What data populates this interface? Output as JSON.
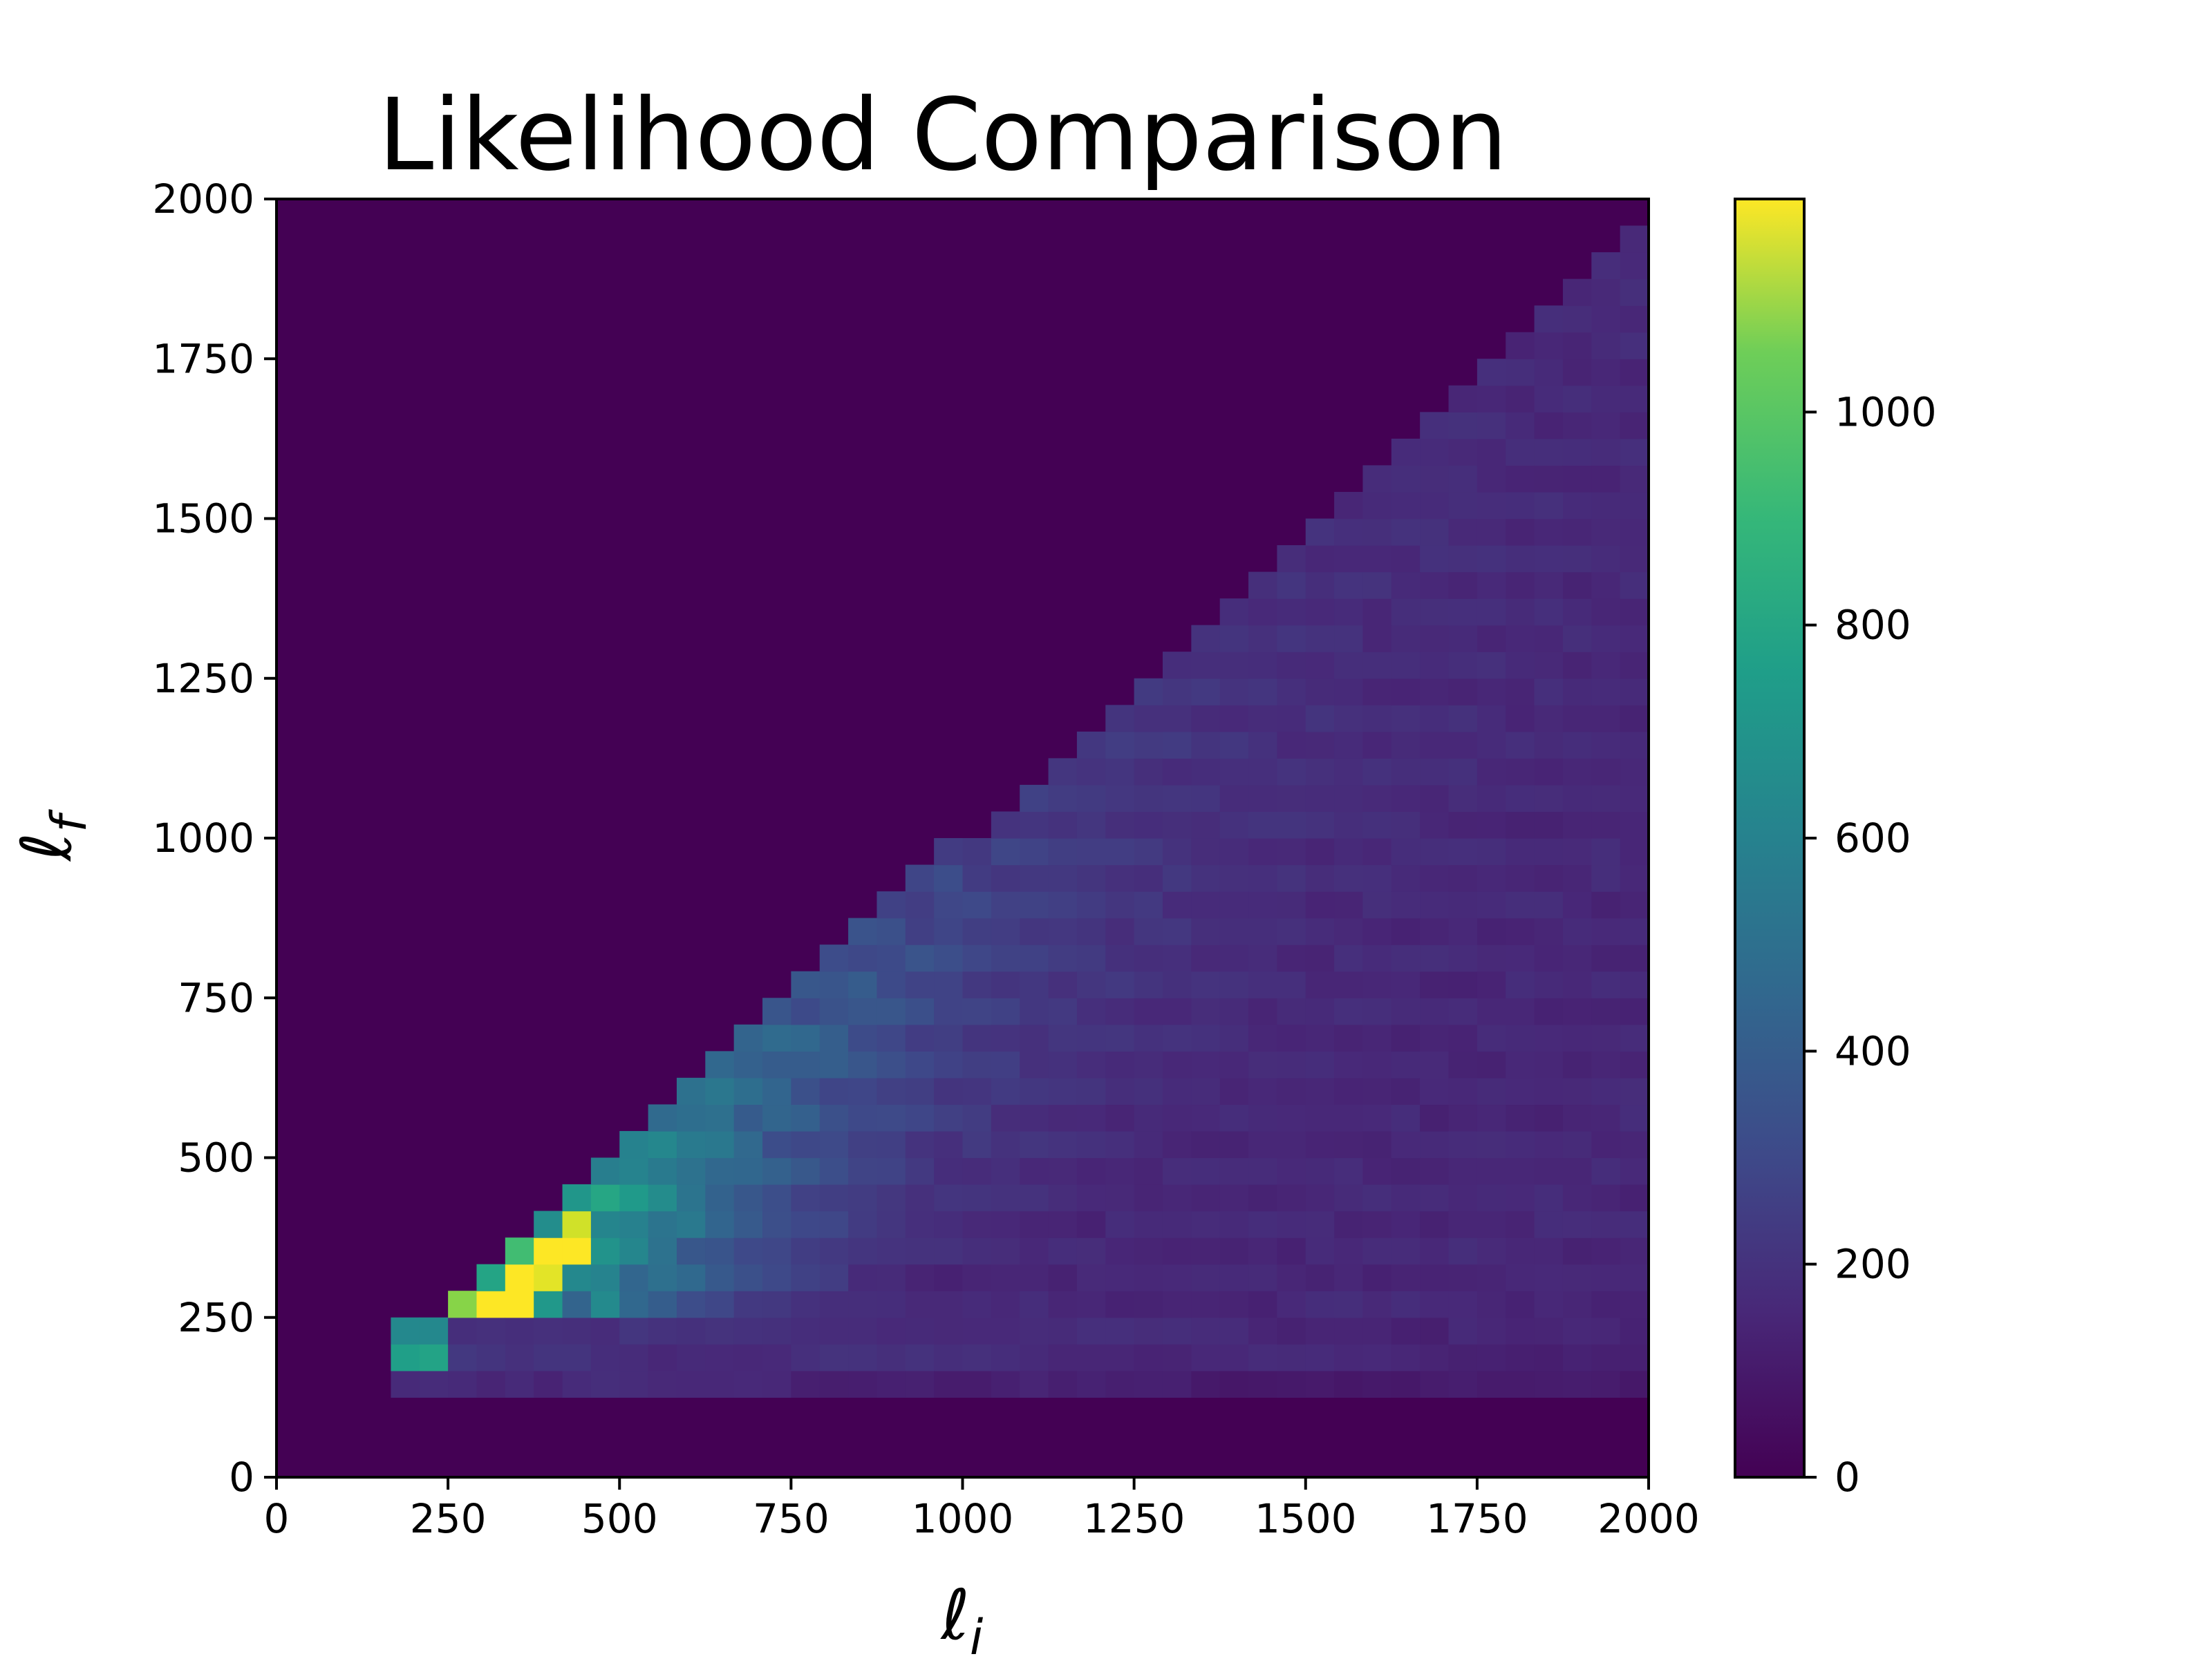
{
  "chart_data": {
    "type": "heatmap",
    "title": "Likelihood Comparison",
    "xlabel": "ℓi",
    "ylabel": "ℓf",
    "xlim": [
      0,
      2000
    ],
    "ylim": [
      0,
      2000
    ],
    "x_ticks": [
      "0",
      "250",
      "500",
      "750",
      "1000",
      "1250",
      "1500",
      "1750",
      "2000"
    ],
    "y_ticks": [
      "0",
      "250",
      "500",
      "750",
      "1000",
      "1250",
      "1500",
      "1750",
      "2000"
    ],
    "colormap": "viridis",
    "colorbar": {
      "range": [
        0,
        1200
      ],
      "ticks": [
        "0",
        "200",
        "400",
        "600",
        "800",
        "1000"
      ]
    },
    "grid": false,
    "bins": 48,
    "bin_width": 41.67,
    "description_regions": {
      "peak": {
        "li": [
          300,
          420
        ],
        "lf": [
          250,
          350
        ],
        "count": 1180
      },
      "floor_band": {
        "lf": [
          150,
          230
        ],
        "count": 150
      }
    }
  }
}
